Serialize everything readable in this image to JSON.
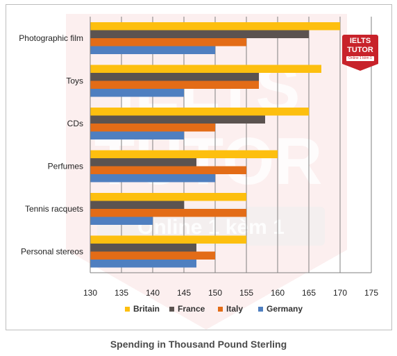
{
  "chart_data": {
    "type": "bar",
    "orientation": "horizontal",
    "title": "Spending in Thousand Pound Sterling",
    "categories": [
      "Photographic film",
      "Toys",
      "CDs",
      "Perfumes",
      "Tennis racquets",
      "Personal stereos"
    ],
    "series": [
      {
        "name": "Britain",
        "color": "#fdbf0f",
        "values": [
          170,
          167,
          165,
          160,
          155,
          155
        ]
      },
      {
        "name": "France",
        "color": "#5b5350",
        "values": [
          165,
          157,
          158,
          147,
          145,
          147
        ]
      },
      {
        "name": "Italy",
        "color": "#e36c17",
        "values": [
          155,
          157,
          150,
          155,
          155,
          150
        ]
      },
      {
        "name": "Germany",
        "color": "#4f7fc0",
        "values": [
          150,
          145,
          145,
          150,
          140,
          147
        ]
      }
    ],
    "xlim": [
      130,
      175
    ],
    "xticks": [
      130,
      135,
      140,
      145,
      150,
      155,
      160,
      165,
      170,
      175
    ],
    "xlabel": "",
    "ylabel": "",
    "grid": "vertical",
    "legend_position": "bottom"
  },
  "watermark": {
    "logo_line1": "IELTS",
    "logo_line2": "TUTOR",
    "logo_line3": "Online 1 kèm 1",
    "big_text_1": "IELTS",
    "big_text_2": "TUTOR",
    "big_text_3": "Online 1 kèm 1"
  }
}
